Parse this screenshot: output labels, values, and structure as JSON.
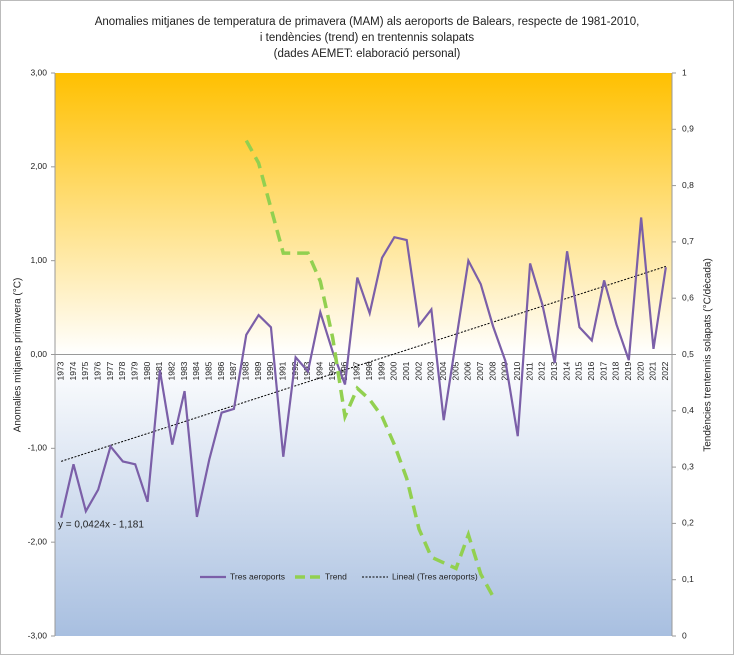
{
  "chart_data": {
    "type": "line",
    "title": [
      "Anomalies mitjanes de temperatura de primavera (MAM) als aeroports de Balears, respecte de 1981-2010,",
      "i tendències (trend) en trentennis solapats",
      "(dades AEMET: elaboració personal)"
    ],
    "y_label": "Anomalies mitjanes primavera (°C)",
    "y2_label": "Tendències trentennis solapats (°C/dècada)",
    "annotation": "y = 0,0424x - 1,181",
    "categories": [
      "1973",
      "1974",
      "1975",
      "1976",
      "1977",
      "1978",
      "1979",
      "1980",
      "1981",
      "1982",
      "1983",
      "1984",
      "1985",
      "1986",
      "1987",
      "1988",
      "1989",
      "1990",
      "1991",
      "1992",
      "1993",
      "1994",
      "1995",
      "1996",
      "1997",
      "1998",
      "1999",
      "2000",
      "2001",
      "2002",
      "2003",
      "2004",
      "2005",
      "2006",
      "2007",
      "2008",
      "2009",
      "2010",
      "2011",
      "2012",
      "2013",
      "2014",
      "2015",
      "2016",
      "2017",
      "2018",
      "2019",
      "2020",
      "2021",
      "2022"
    ],
    "series": [
      {
        "name": "Tres aeroports",
        "color": "#7b5fa8",
        "values": [
          -1.74,
          -1.17,
          -1.67,
          -1.44,
          -0.98,
          -1.14,
          -1.17,
          -1.57,
          -0.17,
          -0.96,
          -0.39,
          -1.73,
          -1.12,
          -0.62,
          -0.58,
          0.21,
          0.42,
          0.29,
          -1.09,
          -0.03,
          -0.18,
          0.45,
          0.03,
          -0.32,
          0.82,
          0.44,
          1.03,
          1.25,
          1.22,
          0.31,
          0.48,
          -0.7,
          0.15,
          1.0,
          0.75,
          0.3,
          -0.07,
          -0.87,
          0.97,
          0.53,
          -0.09,
          1.1,
          0.29,
          0.15,
          0.79,
          0.32,
          -0.06,
          1.46,
          0.06,
          0.93
        ]
      },
      {
        "name": "Trend",
        "color": "#92d050",
        "axis": "y2",
        "dashed": true,
        "values": [
          null,
          null,
          null,
          null,
          null,
          null,
          null,
          null,
          null,
          null,
          null,
          null,
          null,
          null,
          null,
          0.88,
          0.84,
          0.76,
          0.68,
          0.68,
          0.68,
          0.63,
          0.53,
          0.39,
          0.44,
          0.42,
          0.39,
          0.34,
          0.28,
          0.19,
          0.14,
          0.13,
          0.12,
          0.18,
          0.11,
          0.07,
          null,
          null,
          null,
          null,
          null,
          null,
          null,
          null,
          null,
          null,
          null,
          null,
          null,
          null
        ]
      }
    ],
    "trendline": {
      "name": "Lineal  (Tres aeroports)",
      "color": "#000000",
      "slope": 0.0424,
      "intercept": -1.181
    },
    "ylim": [
      -3,
      3
    ],
    "yticks": [
      {
        "value": -3,
        "label": "-3,00"
      },
      {
        "value": -2,
        "label": "-2,00"
      },
      {
        "value": -1,
        "label": "-1,00"
      },
      {
        "value": 0,
        "label": "0,00"
      },
      {
        "value": 1,
        "label": "1,00"
      },
      {
        "value": 2,
        "label": "2,00"
      },
      {
        "value": 3,
        "label": "3,00"
      }
    ],
    "y2lim": [
      0,
      1
    ],
    "y2ticks": [
      0,
      {
        "value": 0.1,
        "label": "0,1"
      },
      {
        "value": 0.2,
        "label": "0,2"
      },
      {
        "value": 0.3,
        "label": "0,3"
      },
      {
        "value": 0.4,
        "label": "0,4"
      },
      {
        "value": 0.5,
        "label": "0,5"
      },
      {
        "value": 0.6,
        "label": "0,6"
      },
      {
        "value": 0.7,
        "label": "0,7"
      },
      {
        "value": 0.8,
        "label": "0,8"
      },
      {
        "value": 0.9,
        "label": "0,9"
      },
      1
    ],
    "legend": "bottom"
  }
}
